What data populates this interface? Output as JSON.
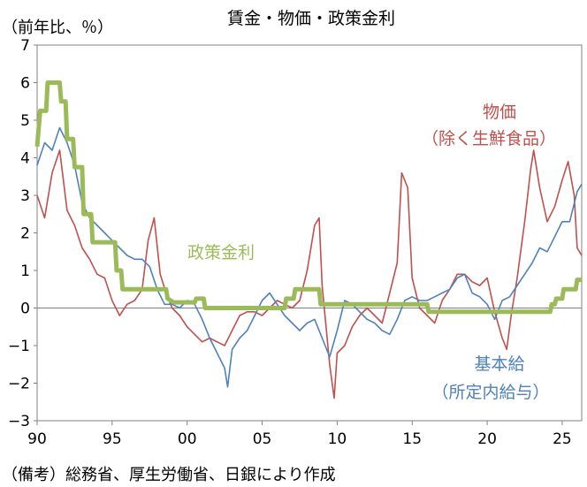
{
  "chart_data": {
    "type": "line",
    "title": "賃金・物価・政策金利",
    "ylabel": "（前年比、％）",
    "note": "（備考）総務省、厚生労働省、日銀により作成",
    "xlim": [
      1990,
      2026.3
    ],
    "ylim": [
      -3,
      7
    ],
    "x_ticks": [
      {
        "value": 1990,
        "label": "90"
      },
      {
        "value": 1995,
        "label": "95"
      },
      {
        "value": 2000,
        "label": "00"
      },
      {
        "value": 2005,
        "label": "05"
      },
      {
        "value": 2010,
        "label": "10"
      },
      {
        "value": 2015,
        "label": "15"
      },
      {
        "value": 2020,
        "label": "20"
      },
      {
        "value": 2025,
        "label": "25"
      }
    ],
    "y_ticks": [
      {
        "value": 7,
        "label": "7"
      },
      {
        "value": 6,
        "label": "6"
      },
      {
        "value": 5,
        "label": "5"
      },
      {
        "value": 4,
        "label": "4"
      },
      {
        "value": 3,
        "label": "3"
      },
      {
        "value": 2,
        "label": "2"
      },
      {
        "value": 1,
        "label": "1"
      },
      {
        "value": 0,
        "label": "0"
      },
      {
        "value": -1,
        "label": "−1"
      },
      {
        "value": -2,
        "label": "−2"
      },
      {
        "value": -3,
        "label": "−3"
      }
    ],
    "series": [
      {
        "key": "cpi",
        "label_lines": [
          "物価",
          "（除く生鮮食品）"
        ],
        "color": "#c0504d",
        "points": [
          [
            1990.0,
            3.0
          ],
          [
            1990.5,
            2.4
          ],
          [
            1991.0,
            3.6
          ],
          [
            1991.5,
            4.2
          ],
          [
            1992.0,
            2.6
          ],
          [
            1992.5,
            2.2
          ],
          [
            1993.0,
            1.6
          ],
          [
            1993.5,
            1.3
          ],
          [
            1994.0,
            0.9
          ],
          [
            1994.5,
            0.8
          ],
          [
            1995.0,
            0.2
          ],
          [
            1995.5,
            -0.2
          ],
          [
            1996.0,
            0.1
          ],
          [
            1996.5,
            0.2
          ],
          [
            1997.0,
            0.5
          ],
          [
            1997.4,
            1.8
          ],
          [
            1997.8,
            2.4
          ],
          [
            1998.2,
            0.9
          ],
          [
            1998.6,
            0.4
          ],
          [
            1999.0,
            0.0
          ],
          [
            1999.5,
            -0.2
          ],
          [
            2000.0,
            -0.5
          ],
          [
            2000.5,
            -0.7
          ],
          [
            2001.0,
            -0.9
          ],
          [
            2001.5,
            -0.8
          ],
          [
            2002.0,
            -0.9
          ],
          [
            2002.5,
            -1.0
          ],
          [
            2003.0,
            -0.6
          ],
          [
            2003.5,
            -0.2
          ],
          [
            2004.0,
            -0.1
          ],
          [
            2004.5,
            -0.1
          ],
          [
            2005.0,
            -0.2
          ],
          [
            2005.5,
            0.0
          ],
          [
            2006.0,
            0.2
          ],
          [
            2006.5,
            0.1
          ],
          [
            2007.0,
            0.0
          ],
          [
            2007.5,
            0.2
          ],
          [
            2008.0,
            1.0
          ],
          [
            2008.5,
            2.2
          ],
          [
            2008.8,
            2.4
          ],
          [
            2009.0,
            0.6
          ],
          [
            2009.5,
            -1.5
          ],
          [
            2009.8,
            -2.4
          ],
          [
            2010.0,
            -1.2
          ],
          [
            2010.5,
            -1.0
          ],
          [
            2011.0,
            -0.5
          ],
          [
            2011.5,
            -0.2
          ],
          [
            2012.0,
            0.0
          ],
          [
            2012.5,
            -0.2
          ],
          [
            2013.0,
            -0.4
          ],
          [
            2013.5,
            0.4
          ],
          [
            2014.0,
            1.2
          ],
          [
            2014.3,
            3.6
          ],
          [
            2014.7,
            3.2
          ],
          [
            2015.0,
            0.8
          ],
          [
            2015.5,
            0.0
          ],
          [
            2016.0,
            -0.2
          ],
          [
            2016.5,
            -0.4
          ],
          [
            2017.0,
            0.2
          ],
          [
            2017.5,
            0.5
          ],
          [
            2018.0,
            0.9
          ],
          [
            2018.5,
            0.9
          ],
          [
            2019.0,
            0.7
          ],
          [
            2019.5,
            0.6
          ],
          [
            2020.0,
            0.8
          ],
          [
            2020.5,
            -0.1
          ],
          [
            2021.0,
            -0.8
          ],
          [
            2021.3,
            -1.1
          ],
          [
            2021.6,
            -0.2
          ],
          [
            2022.0,
            0.8
          ],
          [
            2022.5,
            2.3
          ],
          [
            2022.9,
            3.7
          ],
          [
            2023.1,
            4.2
          ],
          [
            2023.5,
            3.2
          ],
          [
            2024.0,
            2.3
          ],
          [
            2024.5,
            2.7
          ],
          [
            2025.0,
            3.4
          ],
          [
            2025.4,
            3.9
          ],
          [
            2025.8,
            3.0
          ],
          [
            2026.0,
            1.6
          ],
          [
            2026.3,
            1.4
          ]
        ]
      },
      {
        "key": "wage",
        "label_lines": [
          "基本給",
          "（所定内給与）"
        ],
        "color": "#4f81bd",
        "points": [
          [
            1990.0,
            3.8
          ],
          [
            1990.5,
            4.4
          ],
          [
            1991.0,
            4.2
          ],
          [
            1991.5,
            4.8
          ],
          [
            1992.0,
            4.4
          ],
          [
            1992.5,
            3.8
          ],
          [
            1993.0,
            2.8
          ],
          [
            1993.5,
            2.4
          ],
          [
            1994.0,
            2.2
          ],
          [
            1994.5,
            2.0
          ],
          [
            1995.0,
            1.8
          ],
          [
            1995.5,
            1.6
          ],
          [
            1996.0,
            1.4
          ],
          [
            1996.5,
            1.3
          ],
          [
            1997.0,
            1.3
          ],
          [
            1997.5,
            1.1
          ],
          [
            1998.0,
            0.5
          ],
          [
            1998.5,
            0.1
          ],
          [
            1999.0,
            0.1
          ],
          [
            1999.5,
            0.0
          ],
          [
            2000.0,
            0.2
          ],
          [
            2000.5,
            0.1
          ],
          [
            2001.0,
            -0.3
          ],
          [
            2001.5,
            -0.8
          ],
          [
            2002.0,
            -1.2
          ],
          [
            2002.5,
            -1.6
          ],
          [
            2002.7,
            -2.1
          ],
          [
            2003.0,
            -1.1
          ],
          [
            2003.5,
            -0.8
          ],
          [
            2004.0,
            -0.6
          ],
          [
            2004.5,
            -0.2
          ],
          [
            2005.0,
            0.2
          ],
          [
            2005.5,
            0.4
          ],
          [
            2006.0,
            0.1
          ],
          [
            2006.5,
            -0.2
          ],
          [
            2007.0,
            -0.4
          ],
          [
            2007.5,
            -0.6
          ],
          [
            2008.0,
            -0.4
          ],
          [
            2008.5,
            -0.3
          ],
          [
            2009.0,
            -0.8
          ],
          [
            2009.5,
            -1.3
          ],
          [
            2010.0,
            -0.6
          ],
          [
            2010.5,
            0.2
          ],
          [
            2011.0,
            0.1
          ],
          [
            2011.5,
            -0.1
          ],
          [
            2012.0,
            -0.3
          ],
          [
            2012.5,
            -0.4
          ],
          [
            2013.0,
            -0.6
          ],
          [
            2013.5,
            -0.7
          ],
          [
            2014.0,
            -0.3
          ],
          [
            2014.5,
            0.2
          ],
          [
            2015.0,
            0.3
          ],
          [
            2015.5,
            0.2
          ],
          [
            2016.0,
            0.2
          ],
          [
            2016.5,
            0.3
          ],
          [
            2017.0,
            0.4
          ],
          [
            2017.5,
            0.5
          ],
          [
            2018.0,
            0.8
          ],
          [
            2018.5,
            0.9
          ],
          [
            2019.0,
            0.4
          ],
          [
            2019.5,
            0.3
          ],
          [
            2020.0,
            0.1
          ],
          [
            2020.5,
            -0.3
          ],
          [
            2021.0,
            0.2
          ],
          [
            2021.5,
            0.3
          ],
          [
            2022.0,
            0.6
          ],
          [
            2022.5,
            0.9
          ],
          [
            2023.0,
            1.2
          ],
          [
            2023.5,
            1.6
          ],
          [
            2024.0,
            1.5
          ],
          [
            2024.5,
            1.9
          ],
          [
            2025.0,
            2.3
          ],
          [
            2025.5,
            2.3
          ],
          [
            2026.0,
            3.1
          ],
          [
            2026.3,
            3.3
          ]
        ]
      },
      {
        "key": "policy",
        "label_lines": [
          "政策金利"
        ],
        "color": "#9bbb59",
        "points": [
          [
            1990.0,
            4.3
          ],
          [
            1990.2,
            5.25
          ],
          [
            1990.6,
            5.25
          ],
          [
            1990.7,
            6.0
          ],
          [
            1991.5,
            6.0
          ],
          [
            1991.6,
            5.5
          ],
          [
            1991.9,
            5.5
          ],
          [
            1992.0,
            4.5
          ],
          [
            1992.4,
            4.5
          ],
          [
            1992.5,
            3.75
          ],
          [
            1993.0,
            3.75
          ],
          [
            1993.1,
            2.5
          ],
          [
            1993.6,
            2.5
          ],
          [
            1993.7,
            1.75
          ],
          [
            1995.2,
            1.75
          ],
          [
            1995.3,
            1.0
          ],
          [
            1995.6,
            1.0
          ],
          [
            1995.7,
            0.5
          ],
          [
            1998.6,
            0.5
          ],
          [
            1998.7,
            0.25
          ],
          [
            1999.1,
            0.15
          ],
          [
            2000.5,
            0.15
          ],
          [
            2000.6,
            0.25
          ],
          [
            2001.1,
            0.25
          ],
          [
            2001.2,
            0.0
          ],
          [
            2006.5,
            0.0
          ],
          [
            2006.6,
            0.25
          ],
          [
            2007.1,
            0.25
          ],
          [
            2007.2,
            0.5
          ],
          [
            2008.8,
            0.5
          ],
          [
            2008.9,
            0.1
          ],
          [
            2016.0,
            0.1
          ],
          [
            2016.1,
            -0.1
          ],
          [
            2024.2,
            -0.1
          ],
          [
            2024.3,
            0.1
          ],
          [
            2024.5,
            0.1
          ],
          [
            2024.6,
            0.25
          ],
          [
            2025.0,
            0.25
          ],
          [
            2025.1,
            0.5
          ],
          [
            2025.9,
            0.5
          ],
          [
            2026.0,
            0.75
          ],
          [
            2026.3,
            0.75
          ]
        ]
      }
    ]
  }
}
